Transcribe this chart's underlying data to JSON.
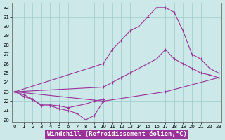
{
  "bg_color": "#cce8e8",
  "line_color": "#993399",
  "xlim": [
    0,
    23
  ],
  "ylim": [
    20,
    32
  ],
  "xtick_vals": [
    0,
    1,
    2,
    3,
    4,
    5,
    6,
    7,
    8,
    9,
    10,
    11,
    12,
    13,
    14,
    15,
    16,
    17,
    18,
    19,
    20,
    21,
    22,
    23
  ],
  "ytick_vals": [
    20,
    21,
    22,
    23,
    24,
    25,
    26,
    27,
    28,
    29,
    30,
    31,
    32
  ],
  "xlabel": "Windchill (Refroidissement éolien,°C)",
  "xlabel_fontsize": 6.5,
  "xlabel_bg": "#993399",
  "xlabel_fg": "#ffffff",
  "tick_fontsize": 5,
  "grid_color": "#99cccc",
  "curves": [
    {
      "x": [
        0,
        10,
        11,
        12,
        13,
        14,
        15,
        16,
        17,
        18,
        19,
        20,
        21,
        22,
        23
      ],
      "y": [
        23.0,
        26.0,
        27.5,
        28.5,
        29.5,
        30.0,
        31.0,
        32.0,
        32.0,
        31.5,
        29.5,
        27.0,
        26.5,
        25.5,
        25.0
      ]
    },
    {
      "x": [
        0,
        10,
        11,
        12,
        13,
        14,
        15,
        16,
        17,
        18,
        19,
        20,
        21,
        22,
        23
      ],
      "y": [
        23.0,
        23.5,
        24.0,
        24.5,
        25.0,
        25.5,
        26.0,
        26.5,
        27.5,
        26.5,
        26.0,
        25.5,
        25.0,
        24.8,
        24.5
      ]
    },
    {
      "x": [
        0,
        1,
        2,
        3,
        4,
        5,
        6,
        7,
        8,
        9,
        10
      ],
      "y": [
        23.0,
        22.7,
        22.2,
        21.5,
        21.5,
        21.2,
        21.0,
        20.7,
        20.0,
        20.5,
        22.0
      ]
    },
    {
      "x": [
        0,
        1,
        2,
        3,
        4,
        5,
        6,
        7,
        8,
        9,
        10
      ],
      "y": [
        23.0,
        22.5,
        22.2,
        21.6,
        21.6,
        21.5,
        21.3,
        21.5,
        21.7,
        22.0,
        22.2
      ]
    },
    {
      "x": [
        0,
        10,
        17,
        23
      ],
      "y": [
        23.0,
        22.0,
        23.0,
        24.5
      ]
    }
  ]
}
